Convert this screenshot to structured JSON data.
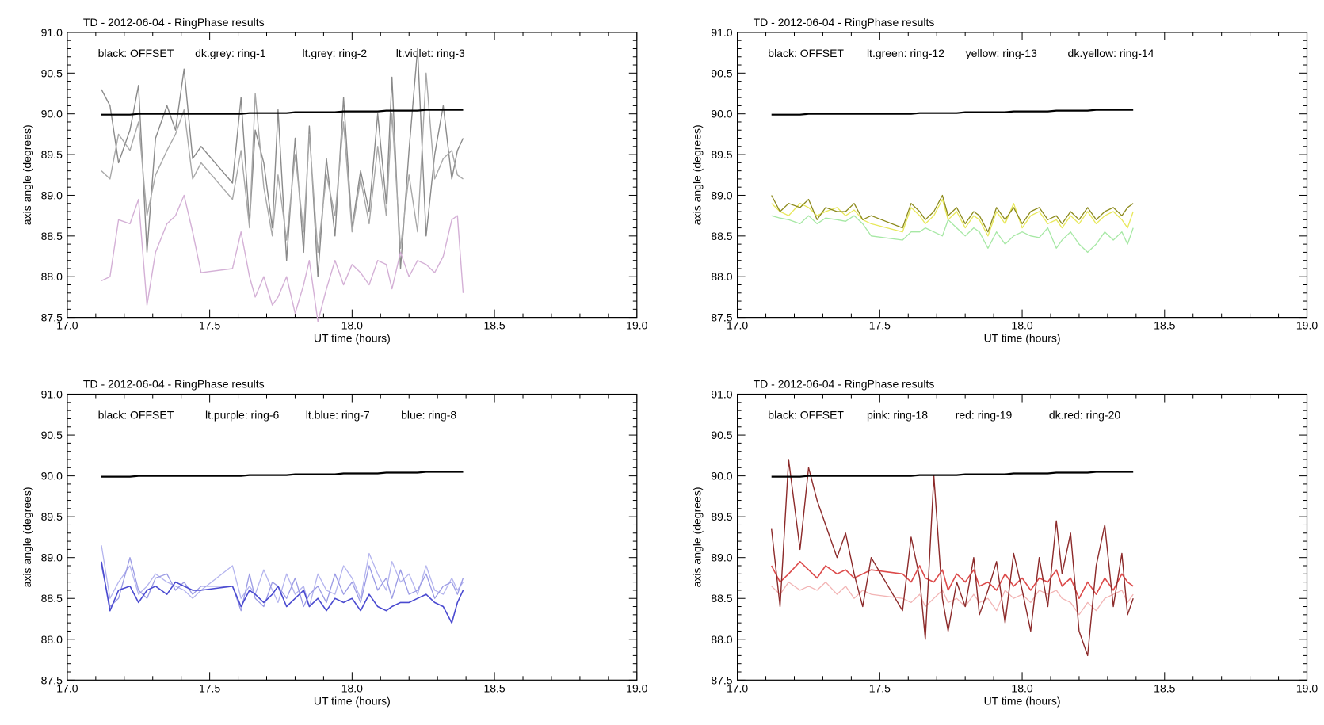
{
  "chart_data": [
    {
      "type": "line",
      "title": "TD  -  2012-06-04  -  RingPhase results",
      "xlabel": "UT time (hours)",
      "ylabel": "axis angle (degrees)",
      "xlim": [
        17.0,
        19.0
      ],
      "ylim": [
        87.5,
        91.0
      ],
      "xticks": [
        "17.0",
        "17.5",
        "18.0",
        "18.5",
        "19.0"
      ],
      "yticks": [
        "87.5",
        "88.0",
        "88.5",
        "89.0",
        "89.5",
        "90.0",
        "90.5",
        "91.0"
      ],
      "legend": [
        "black: OFFSET",
        "dk.grey: ring-1",
        "lt.grey: ring-2",
        "lt.violet: ring-3"
      ],
      "x": [
        17.12,
        17.15,
        17.18,
        17.22,
        17.25,
        17.28,
        17.31,
        17.35,
        17.38,
        17.41,
        17.44,
        17.47,
        17.58,
        17.61,
        17.64,
        17.66,
        17.69,
        17.72,
        17.74,
        17.77,
        17.8,
        17.83,
        17.85,
        17.88,
        17.91,
        17.94,
        17.97,
        18.0,
        18.03,
        18.06,
        18.09,
        18.12,
        18.14,
        18.17,
        18.2,
        18.23,
        18.26,
        18.29,
        18.32,
        18.35,
        18.37,
        18.39
      ],
      "series": [
        {
          "color": "#000000",
          "width": 2.2,
          "values": [
            89.99,
            89.99,
            89.99,
            89.99,
            90.0,
            90.0,
            90.0,
            90.0,
            90.0,
            90.0,
            90.0,
            90.0,
            90.0,
            90.0,
            90.01,
            90.01,
            90.01,
            90.01,
            90.01,
            90.01,
            90.02,
            90.02,
            90.02,
            90.02,
            90.02,
            90.02,
            90.03,
            90.03,
            90.03,
            90.03,
            90.03,
            90.04,
            90.04,
            90.04,
            90.04,
            90.04,
            90.05,
            90.05,
            90.05,
            90.05,
            90.05,
            90.05
          ]
        },
        {
          "color": "#8a8a8a",
          "width": 1.4,
          "values": [
            90.3,
            90.1,
            89.4,
            89.8,
            90.35,
            88.3,
            89.7,
            90.1,
            89.8,
            90.55,
            89.45,
            89.6,
            89.15,
            90.2,
            88.65,
            89.8,
            89.4,
            88.6,
            90.05,
            88.2,
            89.7,
            88.3,
            89.85,
            88.0,
            89.45,
            88.5,
            90.2,
            88.6,
            89.3,
            88.8,
            90.0,
            88.9,
            90.45,
            88.1,
            89.55,
            90.8,
            88.5,
            89.5,
            90.1,
            89.2,
            89.55,
            89.7
          ]
        },
        {
          "color": "#a8a8a8",
          "width": 1.4,
          "values": [
            89.3,
            89.2,
            89.75,
            89.55,
            89.9,
            88.75,
            89.25,
            89.55,
            89.75,
            90.05,
            89.2,
            89.4,
            88.95,
            89.55,
            88.6,
            90.25,
            89.1,
            88.5,
            89.25,
            88.45,
            89.5,
            88.55,
            89.75,
            88.3,
            89.25,
            88.75,
            89.9,
            88.55,
            89.2,
            88.65,
            89.6,
            88.75,
            90.0,
            88.35,
            89.25,
            88.55,
            90.5,
            89.2,
            89.45,
            89.55,
            89.25,
            89.2
          ]
        },
        {
          "color": "#d4b0d6",
          "width": 1.4,
          "values": [
            87.95,
            88.0,
            88.7,
            88.65,
            88.95,
            87.65,
            88.3,
            88.65,
            88.75,
            89.0,
            88.55,
            88.05,
            88.1,
            88.55,
            88.0,
            87.75,
            88.0,
            87.65,
            87.75,
            88.0,
            87.55,
            87.9,
            88.2,
            87.45,
            87.85,
            88.2,
            87.9,
            88.15,
            88.05,
            87.9,
            88.2,
            88.15,
            87.85,
            88.3,
            88.0,
            88.2,
            88.15,
            88.05,
            88.25,
            88.7,
            88.75,
            87.8
          ]
        }
      ]
    },
    {
      "type": "line",
      "title": "TD  -  2012-06-04  -  RingPhase results",
      "xlabel": "UT time (hours)",
      "ylabel": "axis angle (degrees)",
      "xlim": [
        17.0,
        19.0
      ],
      "ylim": [
        87.5,
        91.0
      ],
      "xticks": [
        "17.0",
        "17.5",
        "18.0",
        "18.5",
        "19.0"
      ],
      "yticks": [
        "87.5",
        "88.0",
        "88.5",
        "89.0",
        "89.5",
        "90.0",
        "90.5",
        "91.0"
      ],
      "legend": [
        "black: OFFSET",
        "lt.green: ring-12",
        "yellow: ring-13",
        "dk.yellow: ring-14"
      ],
      "x": [
        17.12,
        17.15,
        17.18,
        17.22,
        17.25,
        17.28,
        17.31,
        17.35,
        17.38,
        17.41,
        17.44,
        17.47,
        17.58,
        17.61,
        17.64,
        17.66,
        17.69,
        17.72,
        17.74,
        17.77,
        17.8,
        17.83,
        17.85,
        17.88,
        17.91,
        17.94,
        17.97,
        18.0,
        18.03,
        18.06,
        18.09,
        18.12,
        18.14,
        18.17,
        18.2,
        18.23,
        18.26,
        18.29,
        18.32,
        18.35,
        18.37,
        18.39
      ],
      "series": [
        {
          "color": "#000000",
          "width": 2.2,
          "values": [
            89.99,
            89.99,
            89.99,
            89.99,
            90.0,
            90.0,
            90.0,
            90.0,
            90.0,
            90.0,
            90.0,
            90.0,
            90.0,
            90.0,
            90.01,
            90.01,
            90.01,
            90.01,
            90.01,
            90.01,
            90.02,
            90.02,
            90.02,
            90.02,
            90.02,
            90.02,
            90.03,
            90.03,
            90.03,
            90.03,
            90.03,
            90.04,
            90.04,
            90.04,
            90.04,
            90.04,
            90.05,
            90.05,
            90.05,
            90.05,
            90.05,
            90.05
          ]
        },
        {
          "color": "#a6e8a4",
          "width": 1.3,
          "values": [
            88.75,
            88.72,
            88.7,
            88.65,
            88.75,
            88.65,
            88.72,
            88.7,
            88.68,
            88.75,
            88.65,
            88.5,
            88.45,
            88.55,
            88.55,
            88.6,
            88.55,
            88.5,
            88.7,
            88.6,
            88.5,
            88.6,
            88.55,
            88.35,
            88.55,
            88.4,
            88.5,
            88.55,
            88.5,
            88.48,
            88.6,
            88.35,
            88.45,
            88.55,
            88.4,
            88.3,
            88.4,
            88.55,
            88.45,
            88.55,
            88.4,
            88.6
          ]
        },
        {
          "color": "#e8e85a",
          "width": 1.3,
          "values": [
            88.9,
            88.8,
            88.75,
            88.9,
            88.85,
            88.75,
            88.8,
            88.85,
            88.75,
            88.82,
            88.7,
            88.65,
            88.55,
            88.85,
            88.75,
            88.65,
            88.75,
            88.95,
            88.7,
            88.8,
            88.6,
            88.75,
            88.7,
            88.5,
            88.8,
            88.65,
            88.9,
            88.6,
            88.75,
            88.8,
            88.65,
            88.7,
            88.6,
            88.75,
            88.65,
            88.8,
            88.65,
            88.75,
            88.8,
            88.7,
            88.6,
            88.8
          ]
        },
        {
          "color": "#8c8a1c",
          "width": 1.3,
          "values": [
            89.0,
            88.8,
            88.9,
            88.85,
            88.95,
            88.7,
            88.85,
            88.8,
            88.8,
            88.9,
            88.7,
            88.75,
            88.6,
            88.9,
            88.8,
            88.7,
            88.8,
            89.0,
            88.75,
            88.85,
            88.65,
            88.8,
            88.75,
            88.55,
            88.85,
            88.7,
            88.85,
            88.65,
            88.8,
            88.85,
            88.7,
            88.75,
            88.65,
            88.8,
            88.7,
            88.85,
            88.7,
            88.8,
            88.85,
            88.75,
            88.85,
            88.9
          ]
        }
      ]
    },
    {
      "type": "line",
      "title": "TD  -  2012-06-04  -  RingPhase results",
      "xlabel": "UT time (hours)",
      "ylabel": "axis angle (degrees)",
      "xlim": [
        17.0,
        19.0
      ],
      "ylim": [
        87.5,
        91.0
      ],
      "xticks": [
        "17.0",
        "17.5",
        "18.0",
        "18.5",
        "19.0"
      ],
      "yticks": [
        "87.5",
        "88.0",
        "88.5",
        "89.0",
        "89.5",
        "90.0",
        "90.5",
        "91.0"
      ],
      "legend": [
        "black: OFFSET",
        "lt.purple: ring-6",
        "lt.blue: ring-7",
        "blue: ring-8"
      ],
      "x": [
        17.12,
        17.15,
        17.18,
        17.22,
        17.25,
        17.28,
        17.31,
        17.35,
        17.38,
        17.41,
        17.44,
        17.47,
        17.58,
        17.61,
        17.64,
        17.66,
        17.69,
        17.72,
        17.74,
        17.77,
        17.8,
        17.83,
        17.85,
        17.88,
        17.91,
        17.94,
        17.97,
        18.0,
        18.03,
        18.06,
        18.09,
        18.12,
        18.14,
        18.17,
        18.2,
        18.23,
        18.26,
        18.29,
        18.32,
        18.35,
        18.37,
        18.39
      ],
      "series": [
        {
          "color": "#000000",
          "width": 2.2,
          "values": [
            89.99,
            89.99,
            89.99,
            89.99,
            90.0,
            90.0,
            90.0,
            90.0,
            90.0,
            90.0,
            90.0,
            90.0,
            90.0,
            90.0,
            90.01,
            90.01,
            90.01,
            90.01,
            90.01,
            90.01,
            90.02,
            90.02,
            90.02,
            90.02,
            90.02,
            90.02,
            90.03,
            90.03,
            90.03,
            90.03,
            90.03,
            90.04,
            90.04,
            90.04,
            90.04,
            90.04,
            90.05,
            90.05,
            90.05,
            90.05,
            90.05,
            90.05
          ]
        },
        {
          "color": "#b4b4ee",
          "width": 1.3,
          "values": [
            89.15,
            88.5,
            88.7,
            88.9,
            88.55,
            88.65,
            88.8,
            88.7,
            88.65,
            88.6,
            88.5,
            88.6,
            88.9,
            88.5,
            88.65,
            88.55,
            88.85,
            88.6,
            88.45,
            88.8,
            88.55,
            88.65,
            88.4,
            88.8,
            88.6,
            88.55,
            88.9,
            88.75,
            88.5,
            89.05,
            88.8,
            88.6,
            88.95,
            88.7,
            88.8,
            88.55,
            88.9,
            88.6,
            88.55,
            88.75,
            88.6,
            88.7
          ]
        },
        {
          "color": "#9a9ae4",
          "width": 1.3,
          "values": [
            88.9,
            88.4,
            88.5,
            89.0,
            88.6,
            88.5,
            88.75,
            88.8,
            88.6,
            88.7,
            88.55,
            88.65,
            88.65,
            88.35,
            88.8,
            88.5,
            88.4,
            88.7,
            88.65,
            88.5,
            88.75,
            88.4,
            88.55,
            88.65,
            88.45,
            88.8,
            88.55,
            88.7,
            88.45,
            88.9,
            88.6,
            88.75,
            88.5,
            88.85,
            88.55,
            88.6,
            88.8,
            88.5,
            88.65,
            88.7,
            88.55,
            88.75
          ]
        },
        {
          "color": "#4a4ad0",
          "width": 1.6,
          "values": [
            88.95,
            88.35,
            88.6,
            88.65,
            88.45,
            88.6,
            88.65,
            88.55,
            88.7,
            88.65,
            88.6,
            88.6,
            88.65,
            88.4,
            88.6,
            88.55,
            88.45,
            88.55,
            88.65,
            88.4,
            88.5,
            88.6,
            88.4,
            88.5,
            88.35,
            88.5,
            88.45,
            88.5,
            88.35,
            88.55,
            88.4,
            88.35,
            88.4,
            88.45,
            88.45,
            88.5,
            88.55,
            88.45,
            88.4,
            88.2,
            88.45,
            88.6
          ]
        }
      ]
    },
    {
      "type": "line",
      "title": "TD  -  2012-06-04  -  RingPhase results",
      "xlabel": "UT time (hours)",
      "ylabel": "axis angle (degrees)",
      "xlim": [
        17.0,
        19.0
      ],
      "ylim": [
        87.5,
        91.0
      ],
      "xticks": [
        "17.0",
        "17.5",
        "18.0",
        "18.5",
        "19.0"
      ],
      "yticks": [
        "87.5",
        "88.0",
        "88.5",
        "89.0",
        "89.5",
        "90.0",
        "90.5",
        "91.0"
      ],
      "legend": [
        "black: OFFSET",
        "pink: ring-18",
        "red: ring-19",
        "dk.red: ring-20"
      ],
      "x": [
        17.12,
        17.15,
        17.18,
        17.22,
        17.25,
        17.28,
        17.31,
        17.35,
        17.38,
        17.41,
        17.44,
        17.47,
        17.58,
        17.61,
        17.64,
        17.66,
        17.69,
        17.72,
        17.74,
        17.77,
        17.8,
        17.83,
        17.85,
        17.88,
        17.91,
        17.94,
        17.97,
        18.0,
        18.03,
        18.06,
        18.09,
        18.12,
        18.14,
        18.17,
        18.2,
        18.23,
        18.26,
        18.29,
        18.32,
        18.35,
        18.37,
        18.39
      ],
      "series": [
        {
          "color": "#000000",
          "width": 2.2,
          "values": [
            89.99,
            89.99,
            89.99,
            89.99,
            90.0,
            90.0,
            90.0,
            90.0,
            90.0,
            90.0,
            90.0,
            90.0,
            90.0,
            90.0,
            90.01,
            90.01,
            90.01,
            90.01,
            90.01,
            90.01,
            90.02,
            90.02,
            90.02,
            90.02,
            90.02,
            90.02,
            90.03,
            90.03,
            90.03,
            90.03,
            90.03,
            90.04,
            90.04,
            90.04,
            90.04,
            90.04,
            90.05,
            90.05,
            90.05,
            90.05,
            90.05,
            90.05
          ]
        },
        {
          "color": "#f2b4b4",
          "width": 1.3,
          "values": [
            88.65,
            88.55,
            88.7,
            88.6,
            88.65,
            88.6,
            88.7,
            88.55,
            88.65,
            88.5,
            88.6,
            88.55,
            88.5,
            88.45,
            88.55,
            88.4,
            88.5,
            88.6,
            88.45,
            88.5,
            88.4,
            88.55,
            88.45,
            88.5,
            88.35,
            88.6,
            88.5,
            88.55,
            88.45,
            88.6,
            88.55,
            88.6,
            88.5,
            88.45,
            88.3,
            88.45,
            88.35,
            88.5,
            88.55,
            88.6,
            88.45,
            88.55
          ]
        },
        {
          "color": "#dc4a4a",
          "width": 1.6,
          "values": [
            88.9,
            88.7,
            88.8,
            88.95,
            88.85,
            88.75,
            88.9,
            88.8,
            88.85,
            88.75,
            88.8,
            88.85,
            88.8,
            88.7,
            88.9,
            88.75,
            88.7,
            88.85,
            88.6,
            88.8,
            88.7,
            88.85,
            88.65,
            88.7,
            88.6,
            88.8,
            88.65,
            88.75,
            88.6,
            88.75,
            88.7,
            88.85,
            88.65,
            88.75,
            88.5,
            88.7,
            88.55,
            88.75,
            88.6,
            88.8,
            88.7,
            88.65
          ]
        },
        {
          "color": "#8c2a2a",
          "width": 1.4,
          "values": [
            89.35,
            88.4,
            90.2,
            89.1,
            90.1,
            89.7,
            89.4,
            89.0,
            89.3,
            88.8,
            88.4,
            89.0,
            88.35,
            89.25,
            88.75,
            88.0,
            90.0,
            88.5,
            88.1,
            88.7,
            88.4,
            89.0,
            88.3,
            88.6,
            88.95,
            88.2,
            89.05,
            88.6,
            88.1,
            89.0,
            88.4,
            89.45,
            88.8,
            89.3,
            88.1,
            87.8,
            88.9,
            89.4,
            88.4,
            89.05,
            88.3,
            88.5
          ]
        }
      ]
    }
  ]
}
